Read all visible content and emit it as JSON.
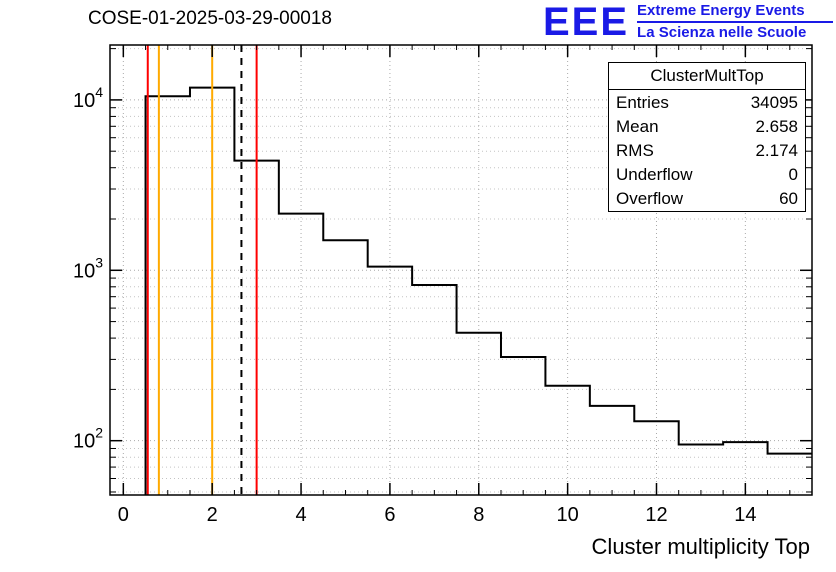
{
  "title": "COSE-01-2025-03-29-00018",
  "logo": {
    "acronym": "EEE",
    "line1": "Extreme Energy Events",
    "line2": "La Scienza nelle Scuole",
    "color": "#1a1ae6"
  },
  "axes": {
    "x_label": "Cluster multiplicity Top"
  },
  "stats": {
    "title": "ClusterMultTop",
    "rows": [
      {
        "label": "Entries",
        "value": "34095"
      },
      {
        "label": "Mean",
        "value": "2.658"
      },
      {
        "label": "RMS",
        "value": "2.174"
      },
      {
        "label": "Underflow",
        "value": "0"
      },
      {
        "label": "Overflow",
        "value": "60"
      }
    ]
  },
  "colors": {
    "histogram": "#000000",
    "threshold_red": "#ff0000",
    "threshold_yellow": "#ffaa00",
    "grid_major": "#aaaaaa",
    "grid_minor": "#c4c4c4",
    "logo_blue": "#1a1ae6"
  },
  "chart_data": {
    "type": "bar",
    "title": "COSE-01-2025-03-29-00018",
    "xlabel": "Cluster multiplicity Top",
    "ylabel": "",
    "y_scale": "log",
    "grid": true,
    "x_range": [
      -0.3,
      15.5
    ],
    "y_range": [
      48,
      21000
    ],
    "bin_edges": [
      0.5,
      1.5,
      2.5,
      3.5,
      4.5,
      5.5,
      6.5,
      7.5,
      8.5,
      9.5,
      10.5,
      11.5,
      12.5,
      13.5,
      14.5,
      15.5
    ],
    "bin_centers": [
      1,
      2,
      3,
      4,
      5,
      6,
      7,
      8,
      9,
      10,
      11,
      12,
      13,
      14,
      15
    ],
    "counts": [
      10500,
      11800,
      4400,
      2150,
      1500,
      1050,
      820,
      430,
      310,
      210,
      160,
      130,
      95,
      98,
      84
    ],
    "line_color": "#000000",
    "x_tick_values": [
      0,
      2,
      4,
      6,
      8,
      10,
      12,
      14
    ],
    "x_tick_labels": [
      "0",
      "2",
      "4",
      "6",
      "8",
      "10",
      "12",
      "14"
    ],
    "y_tick_exponents": [
      2,
      3,
      4
    ],
    "vlines": [
      {
        "x": 0.55,
        "color": "#ff0000",
        "style": "solid"
      },
      {
        "x": 0.8,
        "color": "#ffaa00",
        "style": "solid"
      },
      {
        "x": 2.0,
        "color": "#ffaa00",
        "style": "solid"
      },
      {
        "x": 2.658,
        "color": "#000000",
        "style": "dashed"
      },
      {
        "x": 3.0,
        "color": "#ff0000",
        "style": "solid"
      }
    ]
  }
}
